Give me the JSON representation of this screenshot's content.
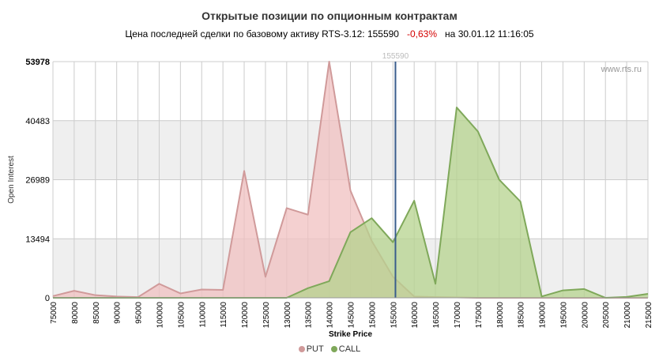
{
  "header": {
    "title": "Открытые позиции по опционным контрактам",
    "subtitle_prefix": "Цена последней сделки по базовому активу",
    "instrument": "RTS-3.12:",
    "last_price": "155590",
    "change": "-0,63%",
    "date_prefix": "на",
    "datetime": "30.01.12 11:16:05"
  },
  "watermark": "www.rts.ru",
  "colors": {
    "put_fill": "#f0c0c0",
    "put_line": "#d09a9a",
    "call_fill": "#b5d38e",
    "call_line": "#7fa85a",
    "marker_line": "#3a5d8c",
    "band": "#efefef",
    "grid": "#cccccc",
    "negative": "#d40000"
  },
  "chart_data": {
    "type": "area",
    "xlabel": "Strike Price",
    "ylabel": "Open Interest",
    "ylim": [
      0,
      53978
    ],
    "y_ticks": [
      0,
      13494,
      26989,
      40483,
      53978
    ],
    "x": [
      75000,
      80000,
      85000,
      90000,
      95000,
      100000,
      105000,
      110000,
      115000,
      120000,
      125000,
      130000,
      135000,
      140000,
      145000,
      150000,
      155000,
      160000,
      165000,
      170000,
      175000,
      180000,
      185000,
      190000,
      195000,
      200000,
      205000,
      210000,
      215000
    ],
    "series": [
      {
        "name": "PUT",
        "values": [
          400,
          1600,
          600,
          300,
          150,
          3200,
          1000,
          1900,
          1800,
          29000,
          4800,
          20500,
          19000,
          53978,
          24500,
          13000,
          4800,
          300,
          150,
          100,
          0,
          0,
          0,
          0,
          0,
          0,
          0,
          0,
          0
        ]
      },
      {
        "name": "CALL",
        "values": [
          0,
          0,
          0,
          0,
          0,
          0,
          0,
          0,
          0,
          0,
          0,
          0,
          2200,
          3800,
          15000,
          18200,
          12700,
          22200,
          3200,
          43500,
          38000,
          27000,
          22000,
          300,
          1700,
          2000,
          0,
          200,
          900
        ]
      }
    ],
    "marker": {
      "value": 155590,
      "label": "155590"
    },
    "grid": true,
    "legend": "bottom-center"
  }
}
